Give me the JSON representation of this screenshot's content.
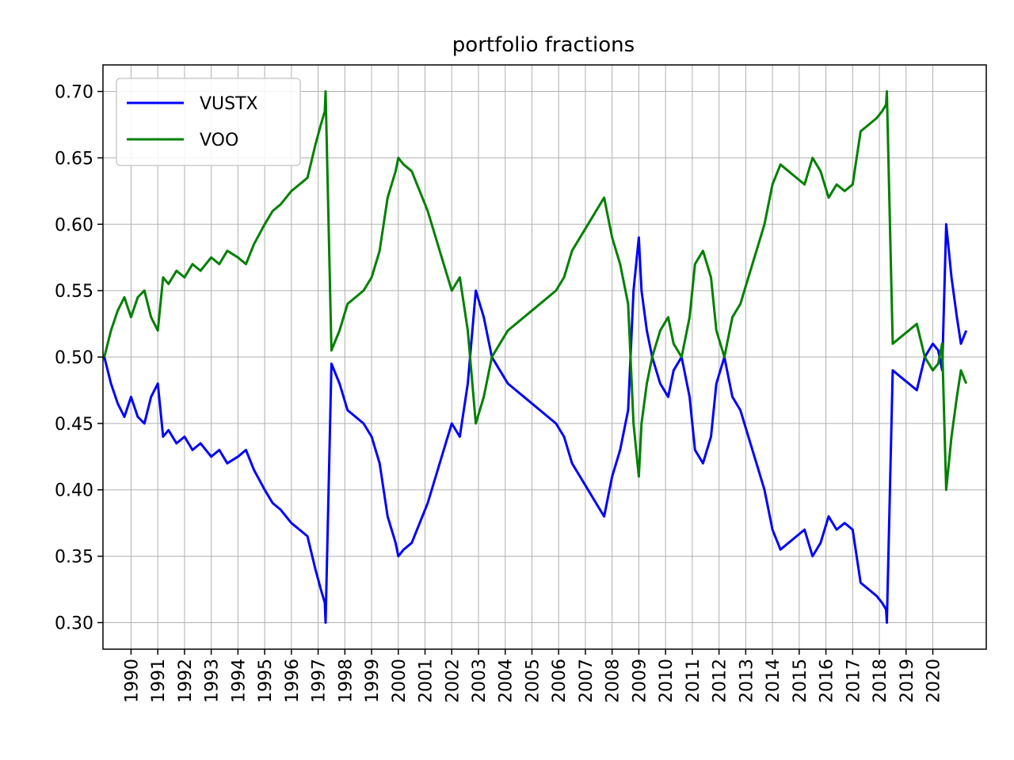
{
  "chart_data": {
    "type": "line",
    "title": "portfolio fractions",
    "xlabel": "",
    "ylabel": "",
    "grid": true,
    "legend_position": "top-left",
    "x_tick_labels": [
      "1990",
      "1991",
      "1992",
      "1993",
      "1994",
      "1995",
      "1996",
      "1997",
      "1998",
      "1999",
      "2000",
      "2001",
      "2002",
      "2003",
      "2004",
      "2005",
      "2006",
      "2007",
      "2008",
      "2009",
      "2010",
      "2011",
      "2012",
      "2013",
      "2014",
      "2015",
      "2016",
      "2017",
      "2018",
      "2019",
      "2020"
    ],
    "y_tick_labels": [
      "0.30",
      "0.35",
      "0.40",
      "0.45",
      "0.50",
      "0.55",
      "0.60",
      "0.65",
      "0.70"
    ],
    "xlim": [
      1988.95,
      2022.0
    ],
    "ylim": [
      0.28,
      0.72
    ],
    "series": [
      {
        "name": "VUSTX",
        "color": "#0000ff",
        "x": [
          1989.0,
          1989.25,
          1989.5,
          1989.75,
          1990.0,
          1990.25,
          1990.5,
          1990.75,
          1991.0,
          1991.2,
          1991.4,
          1991.7,
          1992.0,
          1992.3,
          1992.6,
          1993.0,
          1993.3,
          1993.6,
          1994.0,
          1994.3,
          1994.6,
          1995.0,
          1995.3,
          1995.6,
          1996.0,
          1996.3,
          1996.6,
          1996.9,
          1997.1,
          1997.25,
          1997.28,
          1997.5,
          1997.8,
          1998.1,
          1998.4,
          1998.7,
          1999.0,
          1999.3,
          1999.6,
          1999.9,
          2000.0,
          2000.2,
          2000.5,
          2000.8,
          2001.1,
          2001.4,
          2001.7,
          2002.0,
          2002.3,
          2002.6,
          2002.9,
          2003.2,
          2003.5,
          2003.8,
          2004.1,
          2004.4,
          2004.7,
          2005.0,
          2005.3,
          2005.6,
          2005.9,
          2006.2,
          2006.5,
          2006.8,
          2007.1,
          2007.4,
          2007.7,
          2008.0,
          2008.3,
          2008.6,
          2008.8,
          2009.0,
          2009.1,
          2009.3,
          2009.5,
          2009.8,
          2010.1,
          2010.3,
          2010.6,
          2010.9,
          2011.1,
          2011.4,
          2011.7,
          2011.9,
          2012.2,
          2012.5,
          2012.8,
          2013.1,
          2013.4,
          2013.7,
          2014.0,
          2014.3,
          2014.6,
          2014.9,
          2015.2,
          2015.5,
          2015.8,
          2016.1,
          2016.4,
          2016.7,
          2017.0,
          2017.3,
          2017.6,
          2017.9,
          2018.1,
          2018.25,
          2018.28,
          2018.5,
          2018.8,
          2019.1,
          2019.4,
          2019.7,
          2020.0,
          2020.2,
          2020.35,
          2020.5,
          2020.7,
          2020.9,
          2021.05,
          2021.25
        ],
        "y": [
          0.5,
          0.48,
          0.465,
          0.455,
          0.47,
          0.455,
          0.45,
          0.47,
          0.48,
          0.44,
          0.445,
          0.435,
          0.44,
          0.43,
          0.435,
          0.425,
          0.43,
          0.42,
          0.425,
          0.43,
          0.415,
          0.4,
          0.39,
          0.385,
          0.375,
          0.37,
          0.365,
          0.34,
          0.325,
          0.315,
          0.3,
          0.495,
          0.48,
          0.46,
          0.455,
          0.45,
          0.44,
          0.42,
          0.38,
          0.36,
          0.35,
          0.355,
          0.36,
          0.375,
          0.39,
          0.41,
          0.43,
          0.45,
          0.44,
          0.48,
          0.55,
          0.53,
          0.5,
          0.49,
          0.48,
          0.475,
          0.47,
          0.465,
          0.46,
          0.455,
          0.45,
          0.44,
          0.42,
          0.41,
          0.4,
          0.39,
          0.38,
          0.41,
          0.43,
          0.46,
          0.55,
          0.59,
          0.55,
          0.52,
          0.5,
          0.48,
          0.47,
          0.49,
          0.5,
          0.47,
          0.43,
          0.42,
          0.44,
          0.48,
          0.5,
          0.47,
          0.46,
          0.44,
          0.42,
          0.4,
          0.37,
          0.355,
          0.36,
          0.365,
          0.37,
          0.35,
          0.36,
          0.38,
          0.37,
          0.375,
          0.37,
          0.33,
          0.325,
          0.32,
          0.315,
          0.31,
          0.3,
          0.49,
          0.485,
          0.48,
          0.475,
          0.5,
          0.51,
          0.505,
          0.49,
          0.6,
          0.56,
          0.53,
          0.51,
          0.52
        ]
      },
      {
        "name": "VOO",
        "color": "#008000",
        "x": [
          1989.0,
          1989.25,
          1989.5,
          1989.75,
          1990.0,
          1990.25,
          1990.5,
          1990.75,
          1991.0,
          1991.2,
          1991.4,
          1991.7,
          1992.0,
          1992.3,
          1992.6,
          1993.0,
          1993.3,
          1993.6,
          1994.0,
          1994.3,
          1994.6,
          1995.0,
          1995.3,
          1995.6,
          1996.0,
          1996.3,
          1996.6,
          1996.9,
          1997.1,
          1997.25,
          1997.28,
          1997.5,
          1997.8,
          1998.1,
          1998.4,
          1998.7,
          1999.0,
          1999.3,
          1999.6,
          1999.9,
          2000.0,
          2000.2,
          2000.5,
          2000.8,
          2001.1,
          2001.4,
          2001.7,
          2002.0,
          2002.3,
          2002.6,
          2002.9,
          2003.2,
          2003.5,
          2003.8,
          2004.1,
          2004.4,
          2004.7,
          2005.0,
          2005.3,
          2005.6,
          2005.9,
          2006.2,
          2006.5,
          2006.8,
          2007.1,
          2007.4,
          2007.7,
          2008.0,
          2008.3,
          2008.6,
          2008.8,
          2009.0,
          2009.1,
          2009.3,
          2009.5,
          2009.8,
          2010.1,
          2010.3,
          2010.6,
          2010.9,
          2011.1,
          2011.4,
          2011.7,
          2011.9,
          2012.2,
          2012.5,
          2012.8,
          2013.1,
          2013.4,
          2013.7,
          2014.0,
          2014.3,
          2014.6,
          2014.9,
          2015.2,
          2015.5,
          2015.8,
          2016.1,
          2016.4,
          2016.7,
          2017.0,
          2017.3,
          2017.6,
          2017.9,
          2018.1,
          2018.25,
          2018.28,
          2018.5,
          2018.8,
          2019.1,
          2019.4,
          2019.7,
          2020.0,
          2020.2,
          2020.35,
          2020.5,
          2020.7,
          2020.9,
          2021.05,
          2021.25
        ],
        "y": [
          0.5,
          0.52,
          0.535,
          0.545,
          0.53,
          0.545,
          0.55,
          0.53,
          0.52,
          0.56,
          0.555,
          0.565,
          0.56,
          0.57,
          0.565,
          0.575,
          0.57,
          0.58,
          0.575,
          0.57,
          0.585,
          0.6,
          0.61,
          0.615,
          0.625,
          0.63,
          0.635,
          0.66,
          0.675,
          0.685,
          0.7,
          0.505,
          0.52,
          0.54,
          0.545,
          0.55,
          0.56,
          0.58,
          0.62,
          0.64,
          0.65,
          0.645,
          0.64,
          0.625,
          0.61,
          0.59,
          0.57,
          0.55,
          0.56,
          0.52,
          0.45,
          0.47,
          0.5,
          0.51,
          0.52,
          0.525,
          0.53,
          0.535,
          0.54,
          0.545,
          0.55,
          0.56,
          0.58,
          0.59,
          0.6,
          0.61,
          0.62,
          0.59,
          0.57,
          0.54,
          0.45,
          0.41,
          0.45,
          0.48,
          0.5,
          0.52,
          0.53,
          0.51,
          0.5,
          0.53,
          0.57,
          0.58,
          0.56,
          0.52,
          0.5,
          0.53,
          0.54,
          0.56,
          0.58,
          0.6,
          0.63,
          0.645,
          0.64,
          0.635,
          0.63,
          0.65,
          0.64,
          0.62,
          0.63,
          0.625,
          0.63,
          0.67,
          0.675,
          0.68,
          0.685,
          0.69,
          0.7,
          0.51,
          0.515,
          0.52,
          0.525,
          0.5,
          0.49,
          0.495,
          0.51,
          0.4,
          0.44,
          0.47,
          0.49,
          0.48
        ]
      }
    ]
  }
}
